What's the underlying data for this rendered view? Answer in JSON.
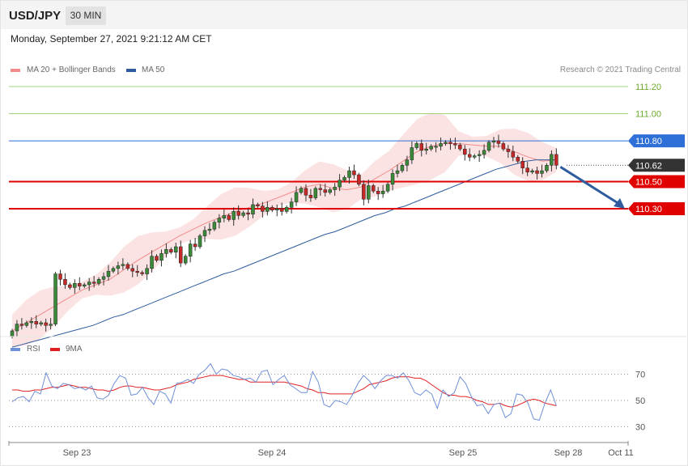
{
  "header": {
    "pair": "USD/JPY",
    "timeframe": "30 MIN"
  },
  "timestamp": "Monday, September 27, 2021 9:21:12 AM CET",
  "legend": {
    "main": [
      {
        "label": "MA 20 + Bollinger Bands",
        "color": "#f28b8b"
      },
      {
        "label": "MA 50",
        "color": "#2f5c9e"
      }
    ],
    "rsi": [
      {
        "label": "RSI",
        "color": "#6f8fd8"
      },
      {
        "label": "9MA",
        "color": "#e02020"
      }
    ]
  },
  "credit": "Research © 2021 Trading Central",
  "chart_data": [
    {
      "type": "candlestick",
      "x_labels": [
        "Sep 23",
        "Sep 24",
        "Sep 25",
        "Sep 28",
        "Oct 11"
      ],
      "ylim": [
        109.25,
        111.35
      ],
      "levels": [
        {
          "label": "111.20",
          "value": 111.2,
          "color": "#6aaa2a",
          "style": "thin"
        },
        {
          "label": "111.00",
          "value": 111.0,
          "color": "#6aaa2a",
          "style": "thin"
        },
        {
          "label": "110.80",
          "value": 110.8,
          "color": "#2f6fd8",
          "style": "resistance"
        },
        {
          "label": "110.62",
          "value": 110.62,
          "color": "#333333",
          "style": "current"
        },
        {
          "label": "110.50",
          "value": 110.5,
          "color": "#e00000",
          "style": "support"
        },
        {
          "label": "110.30",
          "value": 110.3,
          "color": "#e00000",
          "style": "support"
        }
      ],
      "arrow": {
        "from": 110.62,
        "to": 110.3,
        "color": "#2f5c9e"
      },
      "close": [
        109.4,
        109.45,
        109.44,
        109.46,
        109.47,
        109.45,
        109.46,
        109.44,
        109.45,
        109.82,
        109.78,
        109.74,
        109.72,
        109.75,
        109.73,
        109.74,
        109.76,
        109.75,
        109.78,
        109.8,
        109.84,
        109.86,
        109.88,
        109.89,
        109.86,
        109.84,
        109.83,
        109.82,
        109.86,
        109.95,
        109.92,
        109.97,
        110.0,
        109.98,
        110.02,
        109.9,
        109.95,
        110.04,
        110.02,
        110.1,
        110.14,
        110.15,
        110.2,
        110.23,
        110.25,
        110.22,
        110.28,
        110.25,
        110.27,
        110.26,
        110.33,
        110.32,
        110.28,
        110.31,
        110.29,
        110.3,
        110.28,
        110.31,
        110.35,
        110.42,
        110.45,
        110.4,
        110.38,
        110.45,
        110.44,
        110.42,
        110.44,
        110.46,
        110.51,
        110.53,
        110.58,
        110.55,
        110.48,
        110.37,
        110.47,
        110.43,
        110.41,
        110.43,
        110.48,
        110.56,
        110.58,
        110.62,
        110.66,
        110.75,
        110.78,
        110.73,
        110.74,
        110.76,
        110.76,
        110.78,
        110.79,
        110.78,
        110.77,
        110.74,
        110.7,
        110.68,
        110.69,
        110.7,
        110.73,
        110.79,
        110.8,
        110.78,
        110.74,
        110.72,
        110.68,
        110.65,
        110.6,
        110.57,
        110.58,
        110.56,
        110.58,
        110.62,
        110.7,
        110.62
      ],
      "ma50": [
        109.28,
        109.3,
        109.32,
        109.34,
        109.36,
        109.38,
        109.4,
        109.42,
        109.44,
        109.47,
        109.5,
        109.52,
        109.55,
        109.58,
        109.61,
        109.64,
        109.67,
        109.7,
        109.73,
        109.76,
        109.79,
        109.82,
        109.84,
        109.87,
        109.9,
        109.93,
        109.96,
        109.99,
        110.02,
        110.05,
        110.08,
        110.11,
        110.13,
        110.16,
        110.19,
        110.22,
        110.25,
        110.27,
        110.3,
        110.32,
        110.35,
        110.38,
        110.41,
        110.44,
        110.47,
        110.5,
        110.53,
        110.56,
        110.59,
        110.61,
        110.63,
        110.65,
        110.66,
        110.66,
        110.66
      ],
      "ma20": [
        109.4,
        109.46,
        109.52,
        109.58,
        109.64,
        109.7,
        109.74,
        109.78,
        109.85,
        109.92,
        109.98,
        110.04,
        110.1,
        110.15,
        110.2,
        110.24,
        110.28,
        110.31,
        110.34,
        110.38,
        110.42,
        110.46,
        110.48,
        110.45,
        110.44,
        110.46,
        110.52,
        110.58,
        110.65,
        110.72,
        110.76,
        110.78,
        110.78,
        110.77,
        110.76,
        110.76,
        110.72,
        110.68,
        110.65,
        110.66
      ],
      "rsi": [
        49,
        52,
        53,
        49,
        57,
        55,
        71,
        61,
        59,
        63,
        62,
        59,
        60,
        58,
        61,
        52,
        51,
        54,
        63,
        69,
        67,
        54,
        55,
        60,
        52,
        47,
        57,
        55,
        48,
        63,
        64,
        66,
        63,
        70,
        73,
        78,
        70,
        74,
        73,
        69,
        68,
        66,
        67,
        64,
        72,
        73,
        62,
        66,
        69,
        62,
        59,
        56,
        56,
        72,
        64,
        47,
        45,
        50,
        49,
        47,
        54,
        63,
        69,
        65,
        59,
        65,
        69,
        69,
        67,
        71,
        65,
        56,
        54,
        58,
        55,
        44,
        58,
        53,
        56,
        68,
        63,
        53,
        46,
        47,
        40,
        47,
        48,
        37,
        40,
        55,
        54,
        48,
        36,
        35,
        48,
        58,
        46
      ],
      "rsi_ma": [
        58,
        58,
        57,
        57,
        58,
        58,
        59,
        60,
        60,
        61,
        62,
        61,
        60,
        60,
        59,
        58,
        58,
        57,
        58,
        60,
        61,
        61,
        60,
        60,
        59,
        58,
        58,
        59,
        60,
        62,
        63,
        64,
        66,
        67,
        68,
        69,
        69,
        69,
        68,
        67,
        66,
        66,
        64,
        64,
        64,
        64,
        64,
        64,
        64,
        63,
        62,
        61,
        59,
        58,
        56,
        56,
        55,
        55,
        55,
        55,
        55,
        57,
        59,
        62,
        63,
        64,
        65,
        67,
        68,
        68,
        68,
        67,
        67,
        65,
        62,
        59,
        56,
        54,
        54,
        53,
        53,
        52,
        50,
        49,
        47,
        47,
        48,
        46,
        45,
        46,
        48,
        50,
        51,
        50,
        48,
        47,
        46
      ],
      "rsi_levels": [
        {
          "label": "70",
          "value": 70
        },
        {
          "label": "50",
          "value": 50
        },
        {
          "label": "30",
          "value": 30
        }
      ]
    }
  ]
}
